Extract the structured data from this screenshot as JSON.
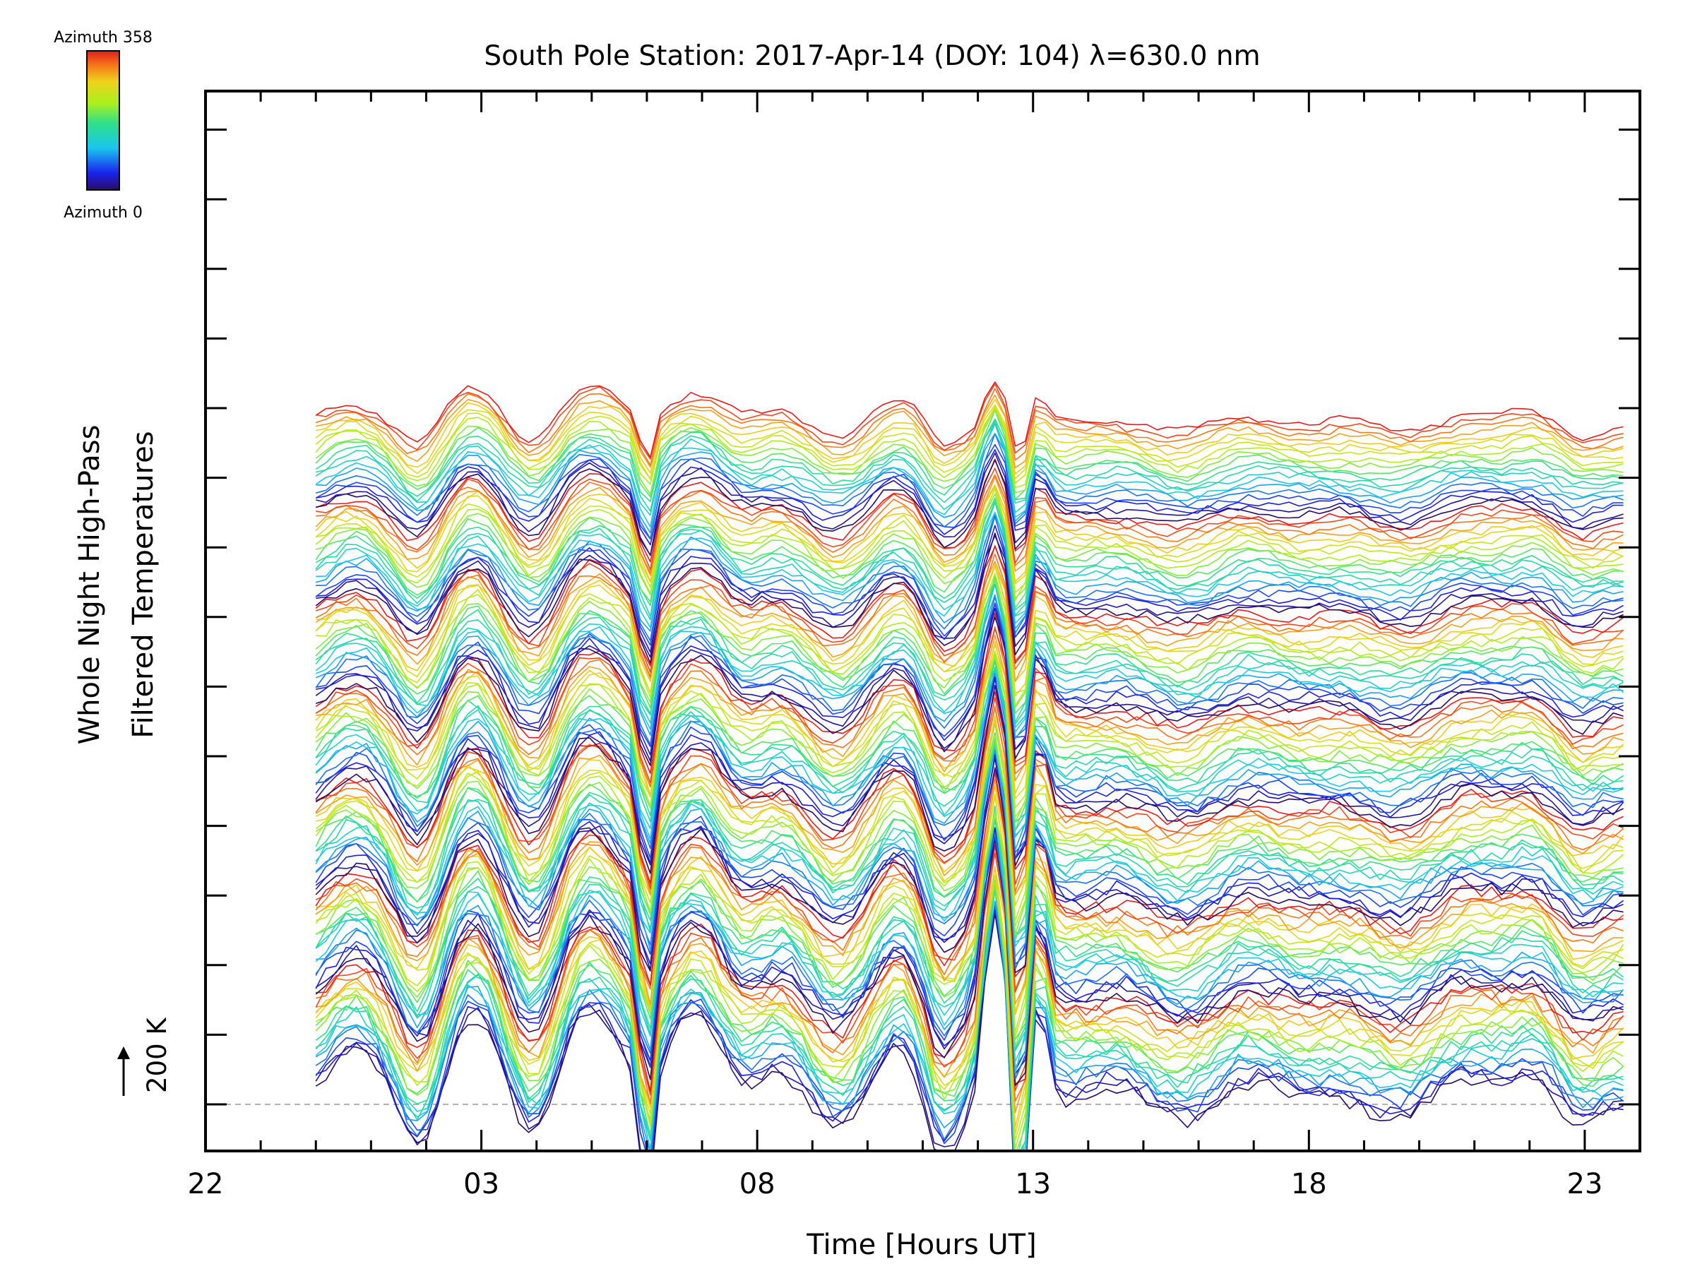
{
  "chart_data": {
    "type": "line",
    "title": "South Pole Station: 2017-Apr-14 (DOY: 104) λ=630.0 nm",
    "xlabel": "Time [Hours UT]",
    "ylabel": [
      "Whole Night High-Pass",
      "Filtered Temperatures"
    ],
    "x_axis": {
      "range_hours_from_22UT": [
        0,
        26
      ],
      "tick_labels": [
        "22",
        "03",
        "08",
        "13",
        "18",
        "23"
      ],
      "tick_label_offsets_hours": [
        0,
        5,
        10,
        15,
        20,
        25
      ],
      "minor_tick_step_hours": 1
    },
    "y_axis": {
      "scale_label": "200 K",
      "reference_line": "dashed"
    },
    "colorbar": {
      "top_label": "Azimuth  358",
      "bottom_label": "Azimuth  0",
      "colormap": "rainbow",
      "azimuth_range": [
        0,
        358
      ]
    },
    "series_summary": {
      "n_traces": 140,
      "data_start_offset_hours": 2.0,
      "data_end_offset_hours": 25.7,
      "samples_per_trace": 130,
      "trace_stack_step_K": 13.8,
      "azimuth_cycle_traces": 20,
      "feature_times_offset_hours": [
        3.0,
        5.0,
        7.1,
        9.6,
        14.2,
        14.8,
        15.0
      ]
    },
    "colors": {
      "axis": "#000000",
      "background": "#ffffff",
      "reference_line": "#999999"
    }
  }
}
